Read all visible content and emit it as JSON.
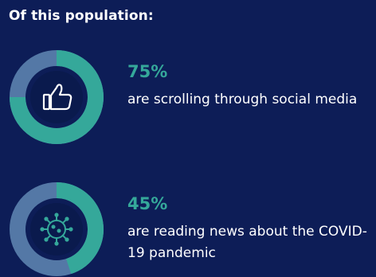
{
  "heading": "Of this population:",
  "colors": {
    "background": "#0d1d57",
    "accent": "#35a89a",
    "ring_remainder": "#5478a6",
    "center": "#0a1a4d",
    "text": "#ffffff"
  },
  "chart_data": [
    {
      "type": "pie",
      "style": "donut",
      "percent_label": "75%",
      "value": 75,
      "description": "are scrolling through social media",
      "icon": "thumbs-up-icon"
    },
    {
      "type": "pie",
      "style": "donut",
      "percent_label": "45%",
      "value": 45,
      "description": "are reading news about the COVID-19 pandemic",
      "icon": "virus-icon"
    }
  ]
}
